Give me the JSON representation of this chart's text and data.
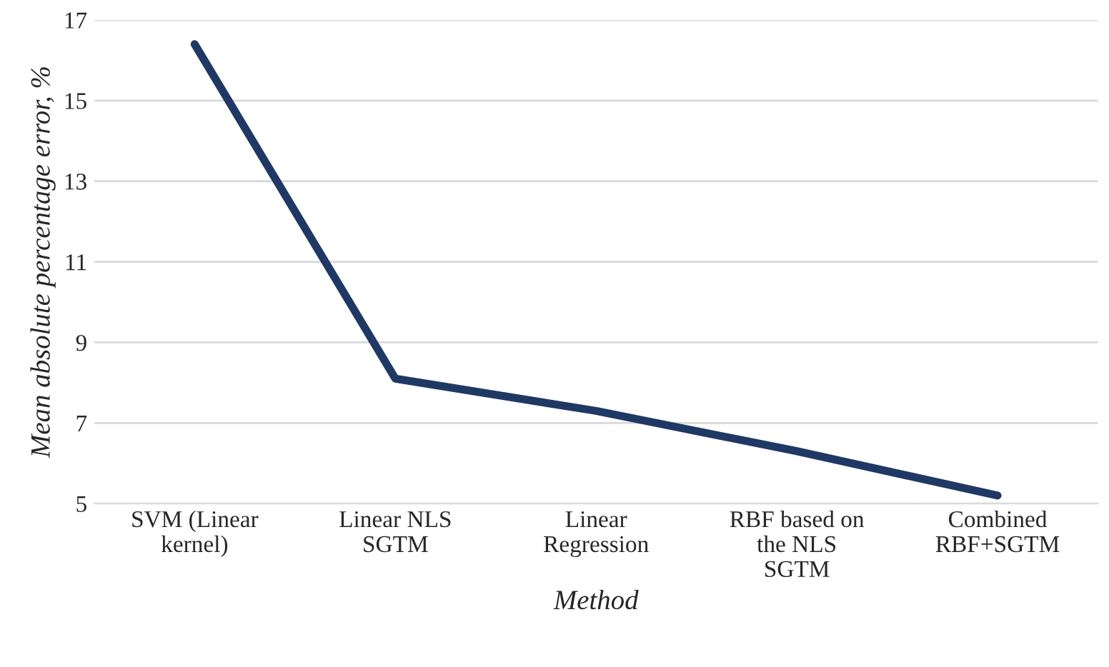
{
  "chart_data": {
    "type": "line",
    "xlabel": "Method",
    "ylabel": "Mean absolute percentage error, %",
    "categories": [
      "SVM (Linear\nkernel)",
      "Linear NLS\nSGTM",
      "Linear\nRegression",
      "RBF based on\nthe NLS\nSGTM",
      "Combined\nRBF+SGTM"
    ],
    "series": [
      {
        "color": "#1f3864",
        "values": [
          16.4,
          8.1,
          7.3,
          6.3,
          5.2
        ]
      }
    ],
    "ylim": [
      5,
      17
    ],
    "yticks": [
      5,
      7,
      9,
      11,
      13,
      15,
      17
    ],
    "grid": "y",
    "legend": false
  }
}
